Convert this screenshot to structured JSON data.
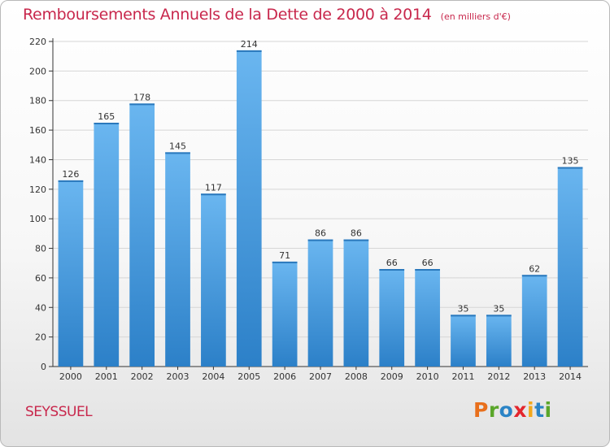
{
  "chart_data": {
    "type": "bar",
    "title": "Remboursements Annuels de la Dette de 2000 à 2014",
    "unit_note": "(en milliers d'€)",
    "categories": [
      "2000",
      "2001",
      "2002",
      "2003",
      "2004",
      "2005",
      "2006",
      "2007",
      "2008",
      "2009",
      "2010",
      "2011",
      "2012",
      "2013",
      "2014"
    ],
    "values": [
      126,
      165,
      178,
      145,
      117,
      214,
      71,
      86,
      86,
      66,
      66,
      35,
      35,
      62,
      135
    ],
    "ylim": [
      0,
      220
    ],
    "yticks": [
      0,
      20,
      40,
      60,
      80,
      100,
      120,
      140,
      160,
      180,
      200,
      220
    ],
    "grid": true,
    "bar_color": "#4c9ee0",
    "bar_color_light": "#6ab6f0",
    "bar_color_dark": "#2c80c8"
  },
  "footer": {
    "city": "SEYSSUEL",
    "brand": "Proxiti",
    "brand_colors": [
      "#e86f1c",
      "#5aa62a",
      "#2b84c6",
      "#e3262d",
      "#f2a81d",
      "#2b84c6",
      "#5aa62a"
    ]
  },
  "colors": {
    "title": "#c8274c",
    "grid": "#d6d6d6",
    "axis": "#333333"
  }
}
